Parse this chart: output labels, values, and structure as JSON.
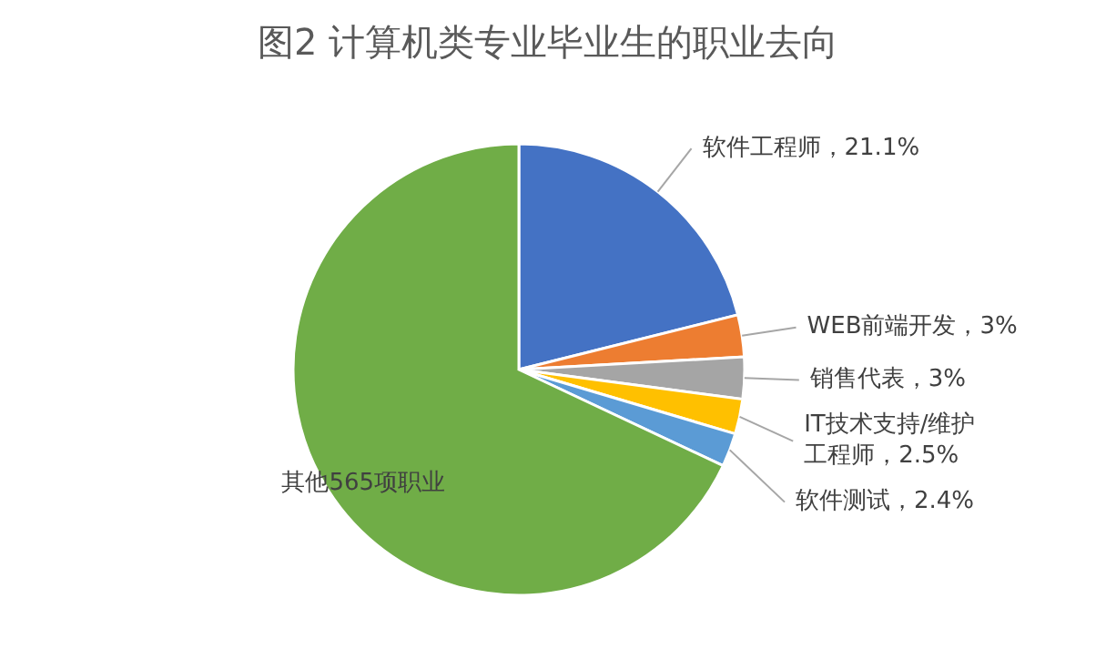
{
  "chart_data": {
    "type": "pie",
    "title": "图2  计算机类专业毕业生的职业去向",
    "categories": [
      "软件工程师",
      "WEB前端开发",
      "销售代表",
      "IT技术支持/维护工程师",
      "软件测试",
      "其他565项职业"
    ],
    "values": [
      21.1,
      3,
      3,
      2.5,
      2.4,
      68
    ],
    "value_labels": [
      "21.1%",
      "3%",
      "3%",
      "2.5%",
      "2.4%",
      null
    ],
    "colors": [
      "#4472c4",
      "#ed7d31",
      "#a5a5a5",
      "#ffc000",
      "#5b9bd5",
      "#70ad47"
    ]
  }
}
